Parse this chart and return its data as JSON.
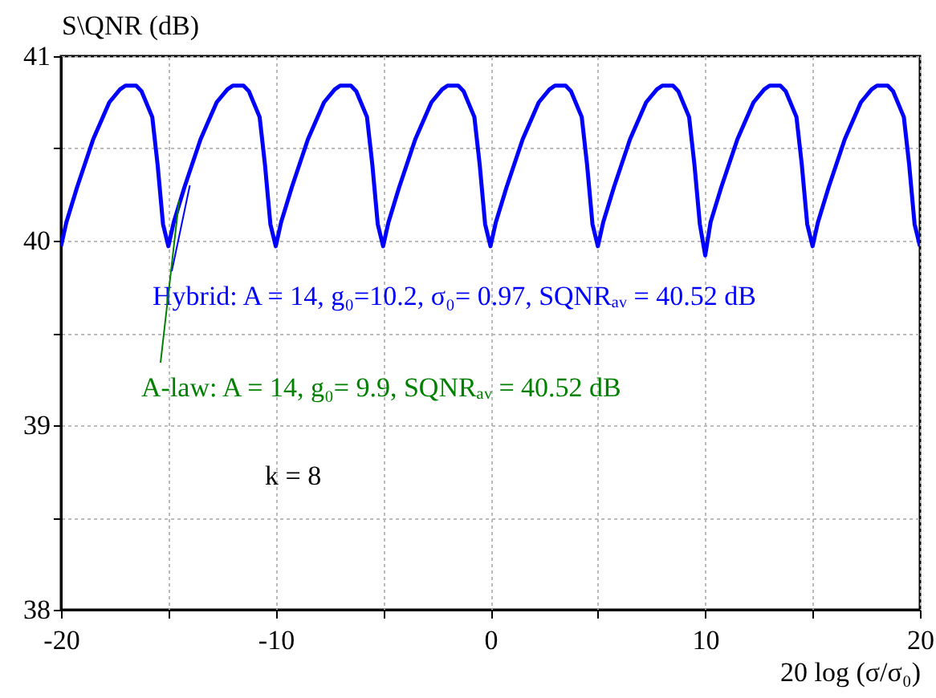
{
  "chart_data": {
    "type": "line",
    "ylabel": "S\\QNR (dB)",
    "xlabel": "20 log (σ/σ₀)",
    "x": [
      -20,
      -19.75,
      -19.25,
      -18.5,
      -17.75,
      -17.25,
      -17,
      -16.5,
      -16.25,
      -15.75,
      -15.5,
      -15.25,
      -15,
      -14.75,
      -14.25,
      -13.5,
      -12.75,
      -12.25,
      -12,
      -11.5,
      -11.25,
      -10.75,
      -10.5,
      -10.25,
      -10,
      -9.75,
      -9.25,
      -8.5,
      -7.75,
      -7.25,
      -7,
      -6.5,
      -6.25,
      -5.75,
      -5.5,
      -5.25,
      -5,
      -4.75,
      -4.25,
      -3.5,
      -2.75,
      -2.25,
      -2,
      -1.5,
      -1.25,
      -0.75,
      -0.5,
      -0.25,
      0,
      0.25,
      0.75,
      1.5,
      2.25,
      2.75,
      3,
      3.5,
      3.75,
      4.25,
      4.5,
      4.75,
      5,
      5.25,
      5.75,
      6.5,
      7.25,
      7.75,
      8,
      8.5,
      8.75,
      9.25,
      9.5,
      9.75,
      10,
      10.25,
      10.75,
      11.5,
      12.25,
      12.75,
      13,
      13.5,
      13.75,
      14.25,
      14.5,
      14.75,
      15,
      15.25,
      15.75,
      16.5,
      17.25,
      17.75,
      18,
      18.5,
      18.75,
      19.25,
      19.5,
      19.75,
      20
    ],
    "series": [
      {
        "color": "#0000ff",
        "values": [
          39.97,
          40.1,
          40.29,
          40.55,
          40.75,
          40.82,
          40.84,
          40.84,
          40.81,
          40.67,
          40.41,
          40.09,
          39.97,
          40.1,
          40.29,
          40.55,
          40.75,
          40.82,
          40.84,
          40.84,
          40.81,
          40.67,
          40.41,
          40.09,
          39.97,
          40.1,
          40.29,
          40.55,
          40.75,
          40.82,
          40.84,
          40.84,
          40.81,
          40.67,
          40.41,
          40.09,
          39.97,
          40.1,
          40.29,
          40.55,
          40.75,
          40.82,
          40.84,
          40.84,
          40.81,
          40.67,
          40.41,
          40.09,
          39.97,
          40.1,
          40.29,
          40.55,
          40.75,
          40.82,
          40.84,
          40.84,
          40.81,
          40.67,
          40.41,
          40.09,
          39.97,
          40.1,
          40.29,
          40.55,
          40.75,
          40.82,
          40.84,
          40.84,
          40.81,
          40.67,
          40.41,
          40.09,
          39.92,
          40.1,
          40.29,
          40.55,
          40.75,
          40.82,
          40.84,
          40.84,
          40.81,
          40.67,
          40.41,
          40.09,
          39.97,
          40.1,
          40.29,
          40.55,
          40.75,
          40.82,
          40.84,
          40.84,
          40.81,
          40.67,
          40.41,
          40.09,
          39.97
        ]
      }
    ],
    "xlim": [
      -20,
      20
    ],
    "ylim": [
      38,
      41
    ],
    "xticks": [
      -20,
      {
        "value": -15,
        "label": null
      },
      -10,
      {
        "value": -5,
        "label": null
      },
      0,
      {
        "value": 5,
        "label": null
      },
      10,
      {
        "value": 15,
        "label": null
      },
      20
    ],
    "yticks": [
      38,
      {
        "value": 38.5,
        "label": null
      },
      39,
      {
        "value": 39.5,
        "label": null
      },
      40,
      {
        "value": 40.5,
        "label": null
      },
      41
    ],
    "grid": true,
    "marker": "none",
    "line_style": "solid",
    "annotations": [
      {
        "text": "Hybrid: A = 14, g₀=10.2, σ₀= 0.97, SQNRₐᵥ = 40.52 dB",
        "x": -14.0,
        "y": 40.3
      },
      {
        "text": "A-law: A = 14, g₀= 9.9, SQNRₐᵥ = 40.52 dB",
        "x": -14.5,
        "y": 40.22
      },
      "k = 8"
    ]
  }
}
